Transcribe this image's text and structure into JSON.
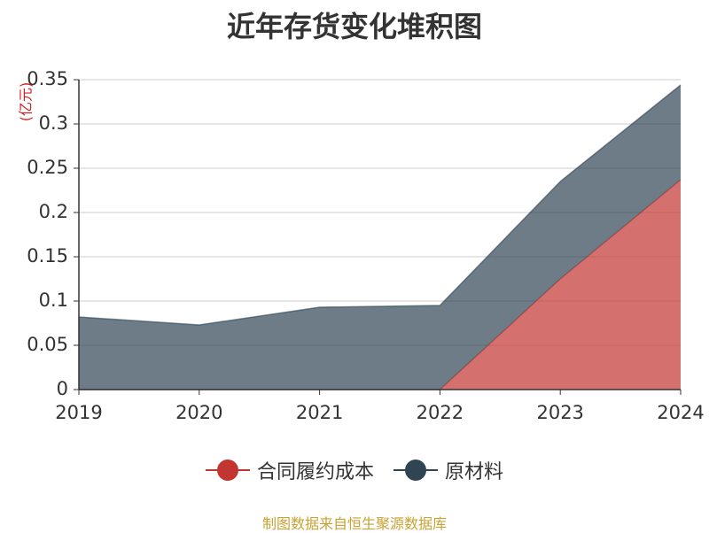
{
  "chart_data": {
    "type": "area",
    "stacked": true,
    "title": "近年存货变化堆积图",
    "ylabel": "(亿元)",
    "xlabel": "",
    "x": [
      "2019",
      "2020",
      "2021",
      "2022",
      "2023",
      "2024"
    ],
    "ylim": [
      0,
      0.35
    ],
    "yticks": [
      "0",
      "0.05",
      "0.1",
      "0.15",
      "0.2",
      "0.25",
      "0.3",
      "0.35"
    ],
    "grid": true,
    "legend_position": "bottom",
    "series": [
      {
        "name": "合同履约成本",
        "color": "#c23531",
        "values": [
          0,
          0,
          0,
          0,
          0.125,
          0.237
        ]
      },
      {
        "name": "原材料",
        "color": "#2f4554",
        "values": [
          0.082,
          0.073,
          0.093,
          0.095,
          0.11,
          0.107
        ]
      }
    ]
  },
  "footer": {
    "source": "制图数据来自恒生聚源数据库",
    "source_color": "#c8a232"
  }
}
